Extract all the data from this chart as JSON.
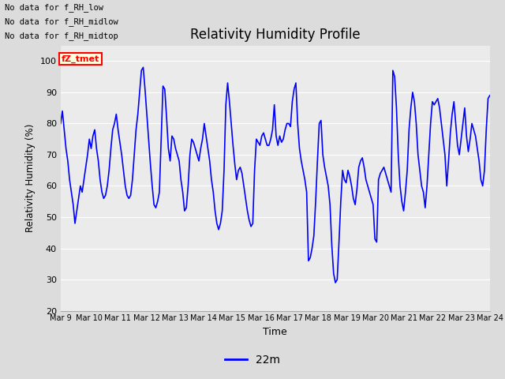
{
  "title": "Relativity Humidity Profile",
  "xlabel": "Time",
  "ylabel": "Relativity Humidity (%)",
  "ylim": [
    20,
    105
  ],
  "yticks": [
    20,
    30,
    40,
    50,
    60,
    70,
    80,
    90,
    100
  ],
  "line_color": "blue",
  "line_width": 1.2,
  "legend_label": "22m",
  "bg_color": "#dcdcdc",
  "plot_bg_color": "#ebebeb",
  "annotations": [
    "No data for f_RH_low",
    "No data for f_RH_midlow",
    "No data for f_RH_midtop"
  ],
  "tz_label": "fZ_tmet",
  "x_tick_labels": [
    "Mar 9",
    "Mar 10",
    "Mar 11",
    "Mar 12",
    "Mar 13",
    "Mar 14",
    "Mar 15",
    "Mar 16",
    "Mar 17",
    "Mar 18",
    "Mar 19",
    "Mar 20",
    "Mar 21",
    "Mar 22",
    "Mar 23",
    "Mar 24"
  ],
  "rh_values": [
    80,
    84,
    78,
    72,
    68,
    62,
    58,
    54,
    48,
    52,
    56,
    60,
    58,
    62,
    66,
    70,
    75,
    72,
    76,
    78,
    72,
    68,
    62,
    58,
    56,
    57,
    60,
    65,
    72,
    78,
    80,
    83,
    78,
    74,
    70,
    65,
    60,
    57,
    56,
    57,
    62,
    70,
    78,
    83,
    90,
    97,
    98,
    91,
    83,
    75,
    67,
    60,
    54,
    53,
    55,
    58,
    75,
    92,
    91,
    82,
    72,
    68,
    76,
    75,
    72,
    70,
    68,
    62,
    58,
    52,
    53,
    60,
    70,
    75,
    74,
    72,
    70,
    68,
    72,
    75,
    80,
    76,
    72,
    68,
    62,
    58,
    52,
    48,
    46,
    48,
    52,
    65,
    86,
    93,
    87,
    80,
    73,
    67,
    62,
    65,
    66,
    64,
    60,
    56,
    52,
    49,
    47,
    48,
    65,
    75,
    74,
    73,
    76,
    77,
    75,
    73,
    73,
    75,
    78,
    86,
    76,
    73,
    76,
    74,
    75,
    78,
    80,
    80,
    79,
    87,
    91,
    93,
    80,
    72,
    68,
    65,
    62,
    58,
    36,
    37,
    40,
    44,
    55,
    68,
    80,
    81,
    70,
    66,
    63,
    60,
    54,
    41,
    32,
    29,
    30,
    42,
    55,
    65,
    62,
    61,
    65,
    63,
    60,
    56,
    54,
    59,
    66,
    68,
    69,
    66,
    62,
    60,
    58,
    56,
    54,
    43,
    42,
    62,
    64,
    65,
    66,
    64,
    62,
    60,
    58,
    97,
    95,
    85,
    70,
    60,
    55,
    52,
    58,
    65,
    78,
    85,
    90,
    87,
    80,
    70,
    65,
    60,
    58,
    53,
    60,
    70,
    80,
    87,
    86,
    87,
    88,
    85,
    80,
    75,
    70,
    60,
    68,
    77,
    83,
    87,
    80,
    73,
    70,
    75,
    80,
    85,
    76,
    71,
    75,
    80,
    78,
    76,
    72,
    68,
    62,
    60,
    65,
    78,
    88,
    89
  ]
}
